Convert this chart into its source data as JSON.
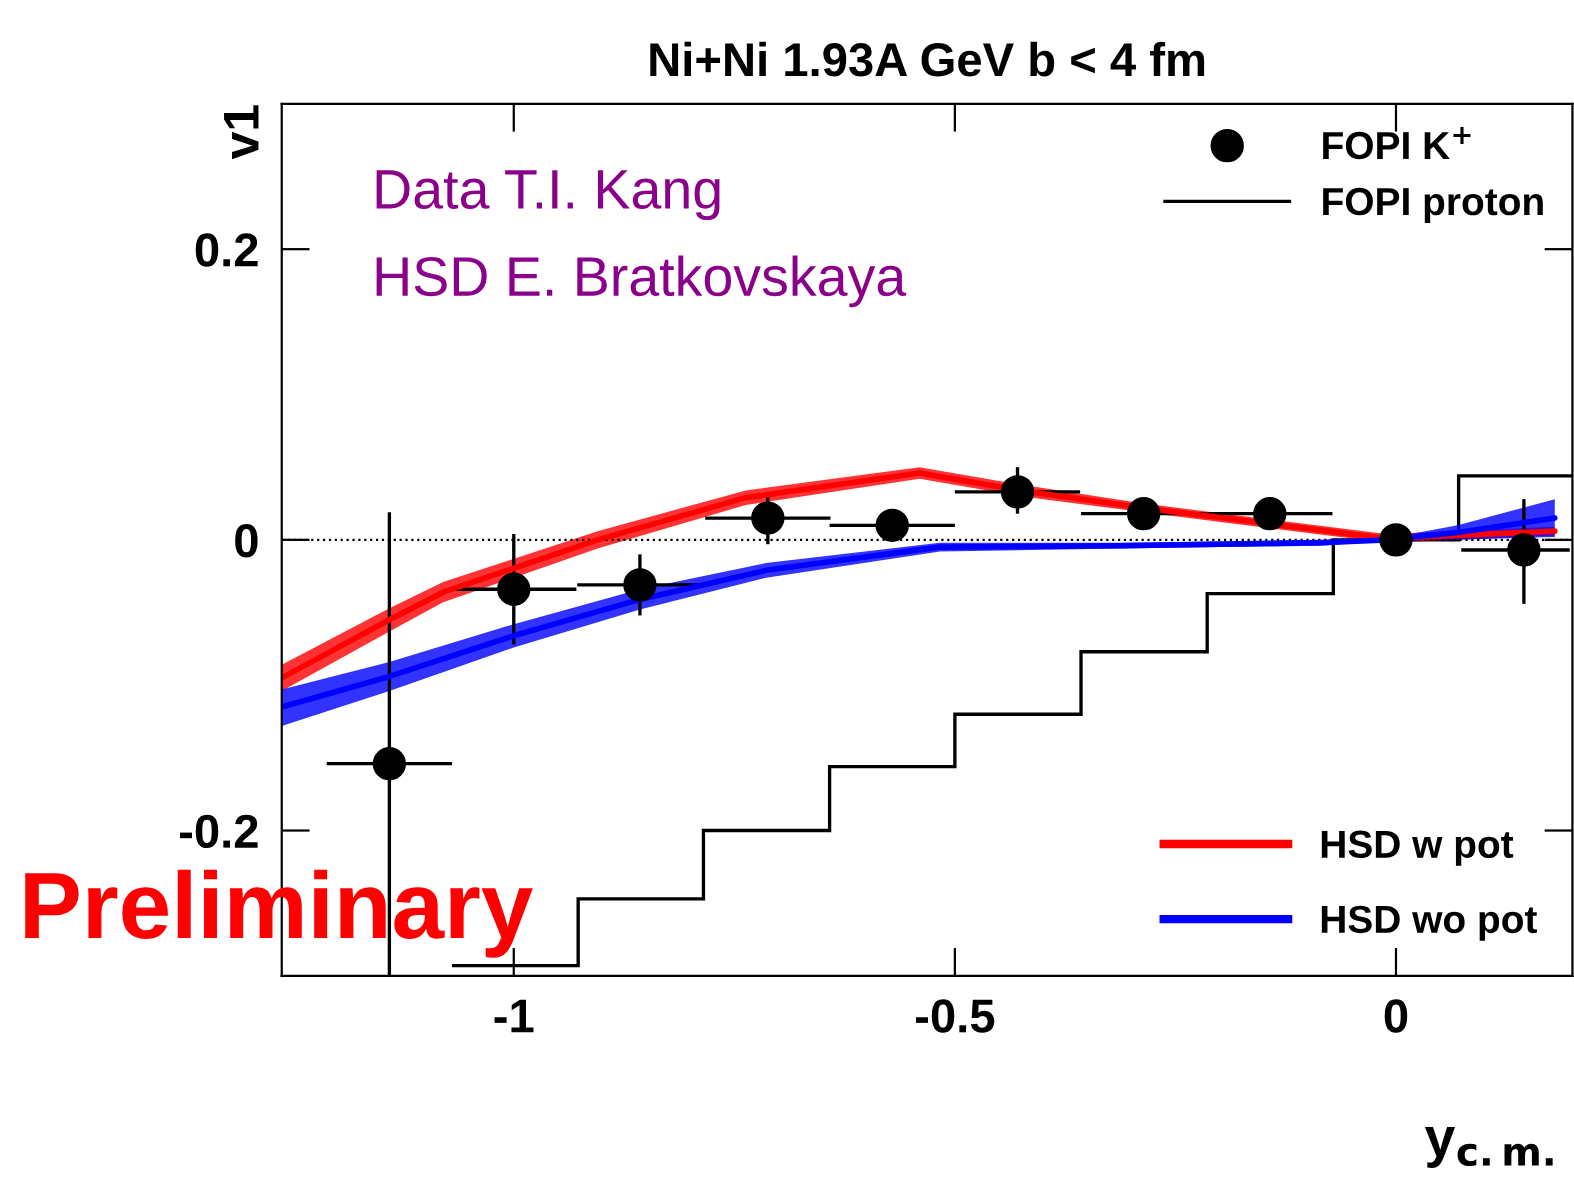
{
  "chart_data": {
    "type": "scatter",
    "title": "Ni+Ni 1.93A GeV b < 4 fm",
    "xlabel": "y$_{c.m.}$",
    "ylabel": "v1",
    "xlim": [
      -1.263,
      0.2
    ],
    "ylim": [
      -0.3,
      0.3
    ],
    "xticks": [
      -1,
      -0.5,
      0
    ],
    "yticks": [
      -0.2,
      0,
      0.2
    ],
    "grid": false,
    "legend": "top right",
    "ref_lines": [
      {
        "axis": "y",
        "value": 0,
        "color": "#000000",
        "line_style": "dotted"
      }
    ],
    "annotations": [
      "Data T.I. Kang",
      "HSD E. Bratkovskaya",
      "Preliminary"
    ],
    "series": [
      {
        "name": "FOPI K$^{+}$",
        "marker": "circle",
        "color": "#000000",
        "x": [
          -1.141,
          -1.0,
          -0.857,
          -0.712,
          -0.571,
          -0.429,
          -0.286,
          -0.143,
          0.0,
          0.145
        ],
        "values": [
          -0.154,
          -0.034,
          -0.031,
          0.015,
          0.01,
          0.033,
          0.018,
          0.018,
          0.0,
          -0.007
        ],
        "errors": [
          [
            -0.3,
            0.019
          ],
          [
            -0.072,
            0.004
          ],
          [
            -0.052,
            -0.01
          ],
          [
            -0.003,
            0.032
          ],
          [
            0.0,
            0.02
          ],
          [
            0.018,
            0.05
          ],
          [
            0.01,
            0.026
          ],
          [
            0.01,
            0.026
          ],
          null,
          [
            -0.044,
            0.028
          ]
        ],
        "xerrors": [
          0.071,
          0.071,
          0.071,
          0.071,
          0.071,
          0.071,
          0.071,
          0.071,
          null,
          [
            0.074,
            0.197
          ]
        ]
      },
      {
        "name": "FOPI proton",
        "type": "histogram",
        "color": "#000000",
        "bins": [
          -1.07,
          -0.927,
          -0.785,
          -0.642,
          -0.5,
          -0.357,
          -0.214,
          -0.071,
          0.071,
          0.2
        ],
        "values": [
          -0.293,
          -0.247,
          -0.2,
          -0.156,
          -0.12,
          -0.077,
          -0.037,
          0.0,
          0.044
        ]
      },
      {
        "name": "HSD w pot",
        "type": "line",
        "color": "#ff0000",
        "x": [
          -1.263,
          -1.141,
          -1.08,
          -0.905,
          -0.737,
          -0.54,
          -0.426,
          -0.286,
          -0.143,
          -0.011,
          0.18
        ],
        "values": [
          -0.095,
          -0.055,
          -0.036,
          0.0,
          0.029,
          0.046,
          0.034,
          0.022,
          0.011,
          0.001,
          0.006
        ],
        "lower": [
          -0.104,
          -0.063,
          -0.043,
          -0.006,
          0.024,
          0.042,
          0.03,
          0.019,
          0.008,
          -0.002,
          0.003
        ],
        "upper": [
          -0.086,
          -0.047,
          -0.029,
          0.006,
          0.034,
          0.05,
          0.038,
          0.025,
          0.014,
          0.004,
          0.009
        ]
      },
      {
        "name": "HSD wo pot",
        "type": "line",
        "color": "#0000ff",
        "x": [
          -1.263,
          -1.141,
          -1.0,
          -0.857,
          -0.714,
          -0.517,
          -0.313,
          -0.086,
          -0.011,
          0.07,
          0.18
        ],
        "values": [
          -0.115,
          -0.094,
          -0.066,
          -0.041,
          -0.021,
          -0.005,
          -0.004,
          -0.002,
          0.0,
          0.005,
          0.015
        ],
        "lower": [
          -0.128,
          -0.104,
          -0.074,
          -0.048,
          -0.026,
          -0.008,
          -0.006,
          -0.004,
          -0.001,
          0.0,
          0.002
        ],
        "upper": [
          -0.103,
          -0.084,
          -0.058,
          -0.034,
          -0.016,
          -0.002,
          -0.002,
          0.0,
          0.001,
          0.01,
          0.028
        ]
      }
    ]
  }
}
